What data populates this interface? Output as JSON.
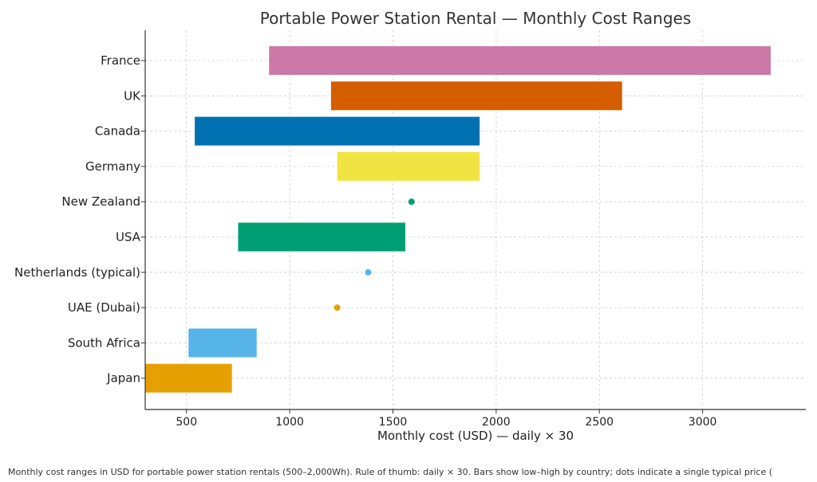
{
  "chart_data": {
    "type": "bar",
    "orientation": "horizontal-range",
    "title": "Portable Power Station Rental — Monthly Cost Ranges",
    "xlabel": "Monthly cost (USD) — daily × 30",
    "ylabel": "",
    "xlim": [
      300,
      3500
    ],
    "xticks": [
      500,
      1000,
      1500,
      2000,
      2500,
      3000
    ],
    "grid": true,
    "series": [
      {
        "name": "France",
        "low": 900,
        "high": 3330,
        "color": "#CC79A7"
      },
      {
        "name": "UK",
        "low": 1200,
        "high": 2610,
        "color": "#D55E00"
      },
      {
        "name": "Canada",
        "low": 540,
        "high": 1920,
        "color": "#0072B2"
      },
      {
        "name": "Germany",
        "low": 1230,
        "high": 1920,
        "color": "#F0E442"
      },
      {
        "name": "New Zealand",
        "typical": 1590,
        "color": "#009E73"
      },
      {
        "name": "USA",
        "low": 750,
        "high": 1560,
        "color": "#009E73"
      },
      {
        "name": "Netherlands (typical)",
        "typical": 1380,
        "color": "#56B4E9"
      },
      {
        "name": "UAE (Dubai)",
        "typical": 1230,
        "color": "#E69F00"
      },
      {
        "name": "South Africa",
        "low": 510,
        "high": 840,
        "color": "#56B4E9"
      },
      {
        "name": "Japan",
        "low": 300,
        "high": 720,
        "color": "#E69F00"
      }
    ]
  },
  "footer": "Monthly cost ranges in USD for portable power station rentals (500–2,000Wh). Rule of thumb: daily × 30. Bars show low–high by country; dots indicate a single typical price ("
}
